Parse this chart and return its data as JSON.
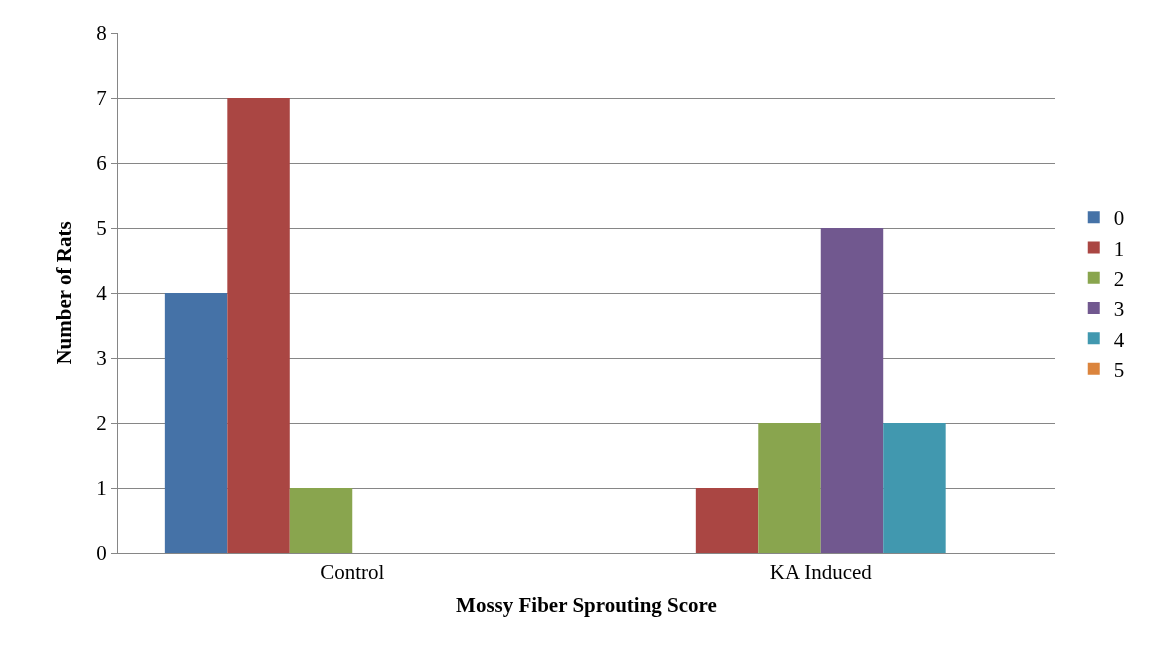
{
  "chart_data": {
    "type": "bar",
    "xlabel": "Mossy Fiber Sprouting Score",
    "ylabel": "Number of Rats",
    "categories": [
      "Control",
      "KA Induced"
    ],
    "series": [
      {
        "name": "0",
        "color": "#4572a7",
        "values": [
          4,
          0
        ]
      },
      {
        "name": "1",
        "color": "#aa4643",
        "values": [
          7,
          1
        ]
      },
      {
        "name": "2",
        "color": "#89a54e",
        "values": [
          1,
          2
        ]
      },
      {
        "name": "3",
        "color": "#71588f",
        "values": [
          0,
          5
        ]
      },
      {
        "name": "4",
        "color": "#4198af",
        "values": [
          0,
          2
        ]
      },
      {
        "name": "5",
        "color": "#db843d",
        "values": [
          0,
          0
        ]
      }
    ],
    "ylim": [
      0,
      8
    ],
    "yticks": [
      0,
      1,
      2,
      3,
      4,
      5,
      6,
      7,
      8
    ],
    "grid": "y",
    "legend": "right"
  }
}
